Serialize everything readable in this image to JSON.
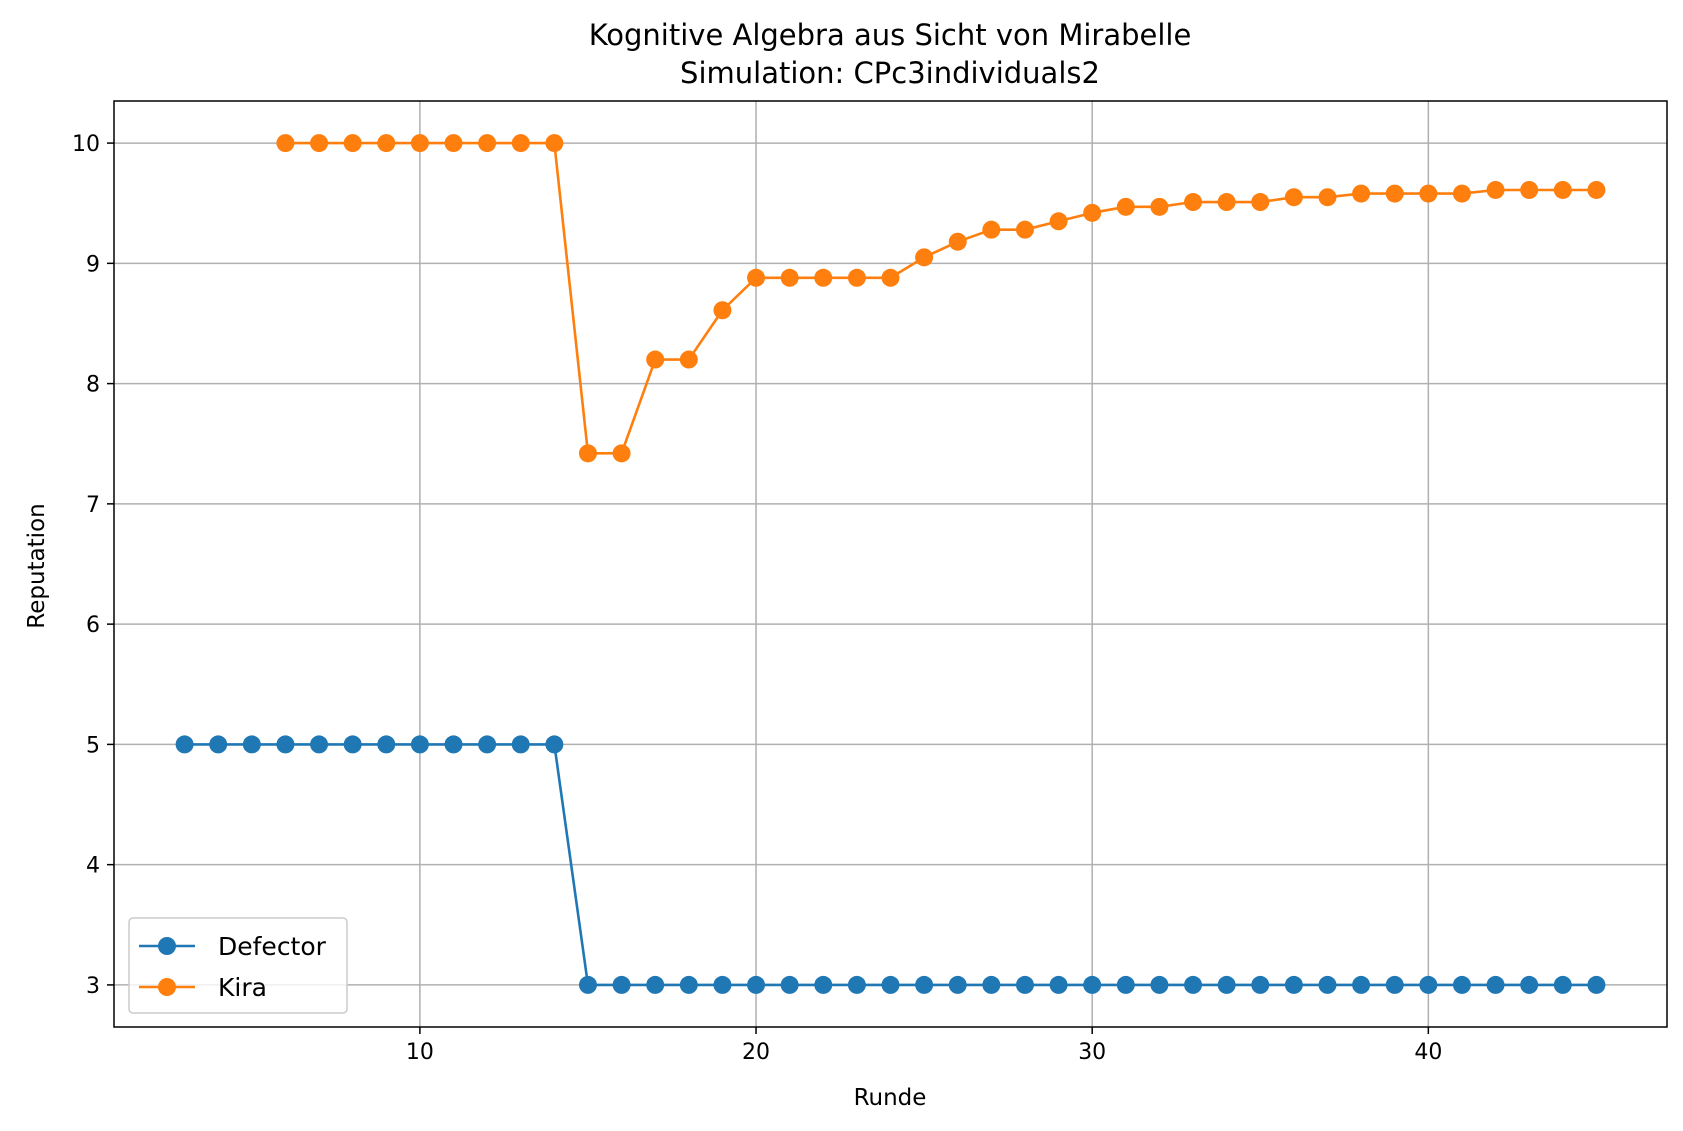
{
  "chart_data": {
    "type": "line",
    "title": "Kognitive Algebra aus Sicht von Mirabelle",
    "subtitle": "Simulation: CPc3individuals2",
    "xlabel": "Runde",
    "ylabel": "Reputation",
    "xlim": [
      0.9,
      47.1
    ],
    "ylim": [
      2.65,
      10.35
    ],
    "xticks": [
      10,
      20,
      30,
      40
    ],
    "yticks": [
      3,
      4,
      5,
      6,
      7,
      8,
      9,
      10
    ],
    "grid": true,
    "legend_position": "lower-left",
    "series": [
      {
        "name": "Defector",
        "color": "#1f77b4",
        "marker": "circle",
        "x": [
          3,
          4,
          5,
          6,
          7,
          8,
          9,
          10,
          11,
          12,
          13,
          14,
          15,
          16,
          17,
          18,
          19,
          20,
          21,
          22,
          23,
          24,
          25,
          26,
          27,
          28,
          29,
          30,
          31,
          32,
          33,
          34,
          35,
          36,
          37,
          38,
          39,
          40,
          41,
          42,
          43,
          44,
          45
        ],
        "y": [
          5,
          5,
          5,
          5,
          5,
          5,
          5,
          5,
          5,
          5,
          5,
          5,
          3,
          3,
          3,
          3,
          3,
          3,
          3,
          3,
          3,
          3,
          3,
          3,
          3,
          3,
          3,
          3,
          3,
          3,
          3,
          3,
          3,
          3,
          3,
          3,
          3,
          3,
          3,
          3,
          3,
          3,
          3
        ]
      },
      {
        "name": "Kira",
        "color": "#ff7f0e",
        "marker": "circle",
        "x": [
          6,
          7,
          8,
          9,
          10,
          11,
          12,
          13,
          14,
          15,
          16,
          17,
          18,
          19,
          20,
          21,
          22,
          23,
          24,
          25,
          26,
          27,
          28,
          29,
          30,
          31,
          32,
          33,
          34,
          35,
          36,
          37,
          38,
          39,
          40,
          41,
          42,
          43,
          44,
          45
        ],
        "y": [
          10,
          10,
          10,
          10,
          10,
          10,
          10,
          10,
          10,
          7.42,
          7.42,
          8.2,
          8.2,
          8.61,
          8.88,
          8.88,
          8.88,
          8.88,
          8.88,
          9.05,
          9.18,
          9.28,
          9.28,
          9.35,
          9.42,
          9.47,
          9.47,
          9.51,
          9.51,
          9.51,
          9.55,
          9.55,
          9.58,
          9.58,
          9.58,
          9.58,
          9.61,
          9.61,
          9.61,
          9.61
        ]
      }
    ]
  }
}
